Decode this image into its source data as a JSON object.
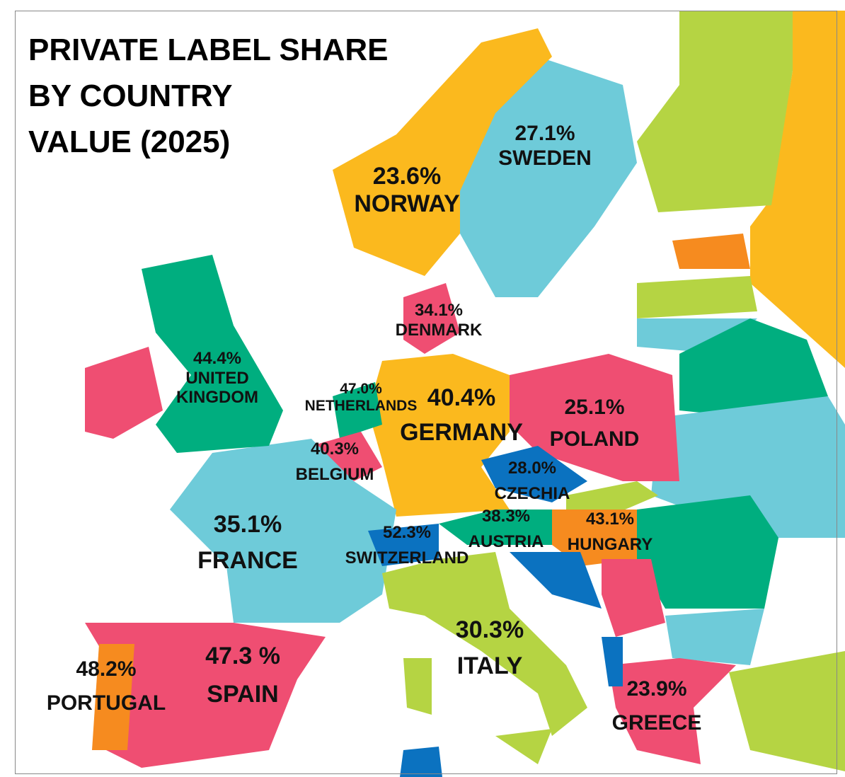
{
  "title": [
    "PRIVATE LABEL SHARE",
    "BY COUNTRY",
    "VALUE (2025)"
  ],
  "colors": {
    "light_blue": "#6ecbd9",
    "yellow": "#fbb91e",
    "green": "#00ae7f",
    "pink": "#ef4e72",
    "orange": "#f68b1f",
    "lime": "#b5d443",
    "blue": "#0b72c0"
  },
  "countries": {
    "sweden": {
      "name": "SWEDEN",
      "value": "27.1%"
    },
    "norway": {
      "name": "NORWAY",
      "value": "23.6%"
    },
    "denmark": {
      "name": "DENMARK",
      "value": "34.1%"
    },
    "uk": {
      "name_line1": "UNITED",
      "name_line2": "KINGDOM",
      "value": "44.4%"
    },
    "netherlands": {
      "name": "NETHERLANDS",
      "value": "47.0%"
    },
    "germany": {
      "name": "GERMANY",
      "value": "40.4%"
    },
    "poland": {
      "name": "POLAND",
      "value": "25.1%"
    },
    "belgium": {
      "name": "BELGIUM",
      "value": "40.3%"
    },
    "czechia": {
      "name": "CZECHIA",
      "value": "28.0%"
    },
    "austria": {
      "name": "AUSTRIA",
      "value": "38.3%"
    },
    "hungary": {
      "name": "HUNGARY",
      "value": "43.1%"
    },
    "switzerland": {
      "name": "SWITZERLAND",
      "value": "52.3%"
    },
    "france": {
      "name": "FRANCE",
      "value": "35.1%"
    },
    "italy": {
      "name": "ITALY",
      "value": "30.3%"
    },
    "spain": {
      "name": "SPAIN",
      "value": "47.3 %"
    },
    "portugal": {
      "name": "PORTUGAL",
      "value": "48.2%"
    },
    "greece": {
      "name": "GREECE",
      "value": "23.9%"
    }
  }
}
